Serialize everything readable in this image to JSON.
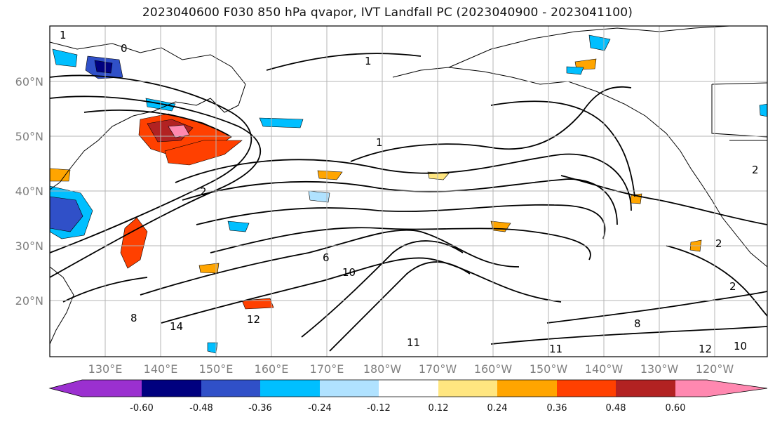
{
  "title": "2023040600 F030 850 hPa qvapor, IVT Landfall PC (2023040900 - 2023041100)",
  "latitude_labels": [
    "60°N",
    "50°N",
    "40°N",
    "30°N",
    "20°N"
  ],
  "longitude_labels": [
    "130°E",
    "140°E",
    "150°E",
    "160°E",
    "170°E",
    "180°W",
    "170°W",
    "160°W",
    "150°W",
    "140°W",
    "130°W",
    "120°W"
  ],
  "colorbar": {
    "colors": [
      "#9b30d0",
      "#00007f",
      "#3050c8",
      "#00bfff",
      "#b0e2ff",
      "#ffffff",
      "#ffe680",
      "#ffa500",
      "#ff4000",
      "#b22222",
      "#ff88b0"
    ],
    "tick_labels": [
      "-0.60",
      "-0.48",
      "-0.36",
      "-0.24",
      "-0.12",
      "0.12",
      "0.24",
      "0.36",
      "0.48",
      "0.60"
    ]
  },
  "contour_labels": [
    "1",
    "0",
    "1",
    "2",
    "1",
    "6",
    "10",
    "14",
    "12",
    "8",
    "11",
    "11",
    "12",
    "10",
    "2",
    "2",
    "8",
    "2"
  ]
}
